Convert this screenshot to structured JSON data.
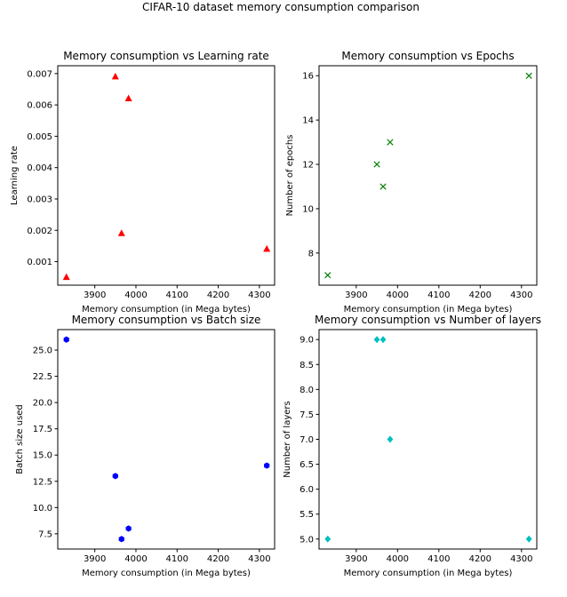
{
  "figure": {
    "suptitle": "CIFAR-10 dataset memory consumption comparison"
  },
  "chart_data": [
    {
      "type": "scatter",
      "title": "Memory consumption vs Learning rate",
      "xlabel": "Memory consumption (in Mega bytes)",
      "ylabel": "Learning rate",
      "xlim": [
        3810,
        4337
      ],
      "ylim": [
        0.00025,
        0.00725
      ],
      "xticks": [
        3900,
        4000,
        4100,
        4200,
        4300
      ],
      "xtick_labels": [
        "3900",
        "4000",
        "4100",
        "4200",
        "4300"
      ],
      "yticks": [
        0.001,
        0.002,
        0.003,
        0.004,
        0.005,
        0.006,
        0.007
      ],
      "ytick_labels": [
        "0.001",
        "0.002",
        "0.003",
        "0.004",
        "0.005",
        "0.006",
        "0.007"
      ],
      "marker": "triangle",
      "color": "#ff0000",
      "points": [
        {
          "x": 3831,
          "y": 0.0005
        },
        {
          "x": 3950,
          "y": 0.0069
        },
        {
          "x": 3965,
          "y": 0.0019
        },
        {
          "x": 3982,
          "y": 0.0062
        },
        {
          "x": 4318,
          "y": 0.0014
        }
      ]
    },
    {
      "type": "scatter",
      "title": "Memory consumption vs Epochs",
      "xlabel": "Memory consumption (in Mega bytes)",
      "ylabel": "Number of epochs",
      "xlim": [
        3810,
        4337
      ],
      "ylim": [
        6.55,
        16.45
      ],
      "xticks": [
        3900,
        4000,
        4100,
        4200,
        4300
      ],
      "xtick_labels": [
        "3900",
        "4000",
        "4100",
        "4200",
        "4300"
      ],
      "yticks": [
        8,
        10,
        12,
        14,
        16
      ],
      "ytick_labels": [
        "8",
        "10",
        "12",
        "14",
        "16"
      ],
      "marker": "x",
      "color": "#008000",
      "points": [
        {
          "x": 3831,
          "y": 7
        },
        {
          "x": 3950,
          "y": 12
        },
        {
          "x": 3965,
          "y": 11
        },
        {
          "x": 3982,
          "y": 13
        },
        {
          "x": 4318,
          "y": 16
        }
      ]
    },
    {
      "type": "scatter",
      "title": "Memory consumption vs Batch size",
      "xlabel": "Memory consumption (in Mega bytes)",
      "ylabel": "Batch size used",
      "xlim": [
        3810,
        4337
      ],
      "ylim": [
        6.05,
        26.95
      ],
      "xticks": [
        3900,
        4000,
        4100,
        4200,
        4300
      ],
      "xtick_labels": [
        "3900",
        "4000",
        "4100",
        "4200",
        "4300"
      ],
      "yticks": [
        7.5,
        10.0,
        12.5,
        15.0,
        17.5,
        20.0,
        22.5,
        25.0
      ],
      "ytick_labels": [
        "7.5",
        "10.0",
        "12.5",
        "15.0",
        "17.5",
        "20.0",
        "22.5",
        "25.0"
      ],
      "marker": "hexagon",
      "color": "#0000ff",
      "points": [
        {
          "x": 3831,
          "y": 26
        },
        {
          "x": 3950,
          "y": 13
        },
        {
          "x": 3965,
          "y": 7
        },
        {
          "x": 3982,
          "y": 8
        },
        {
          "x": 4318,
          "y": 14
        }
      ]
    },
    {
      "type": "scatter",
      "title": "Memory consumption vs Number of layers",
      "xlabel": "Memory consumption (in Mega bytes)",
      "ylabel": "Number of layers",
      "xlim": [
        3810,
        4337
      ],
      "ylim": [
        4.8,
        9.2
      ],
      "xticks": [
        3900,
        4000,
        4100,
        4200,
        4300
      ],
      "xtick_labels": [
        "3900",
        "4000",
        "4100",
        "4200",
        "4300"
      ],
      "yticks": [
        5.0,
        5.5,
        6.0,
        6.5,
        7.0,
        7.5,
        8.0,
        8.5,
        9.0
      ],
      "ytick_labels": [
        "5.0",
        "5.5",
        "6.0",
        "6.5",
        "7.0",
        "7.5",
        "8.0",
        "8.5",
        "9.0"
      ],
      "marker": "diamond",
      "color": "#00bfbf",
      "points": [
        {
          "x": 3831,
          "y": 5
        },
        {
          "x": 3950,
          "y": 9
        },
        {
          "x": 3965,
          "y": 9
        },
        {
          "x": 3982,
          "y": 7
        },
        {
          "x": 4318,
          "y": 5
        }
      ]
    }
  ]
}
